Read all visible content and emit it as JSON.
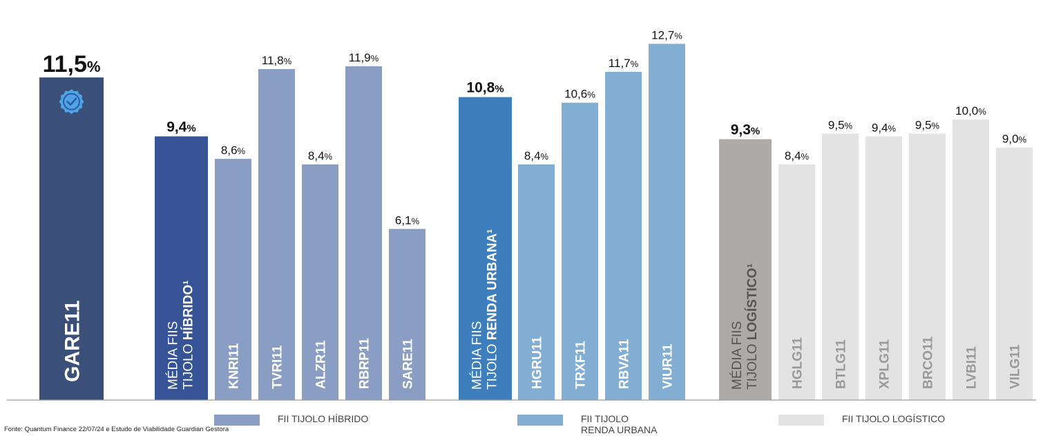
{
  "chart_data": {
    "type": "bar",
    "ylim": [
      0,
      13.5
    ],
    "bars": [
      {
        "label": "GARE11",
        "value": 11.5,
        "value_main": "11,5",
        "unit": "%",
        "group": "highlight",
        "color": "#3a5078",
        "bold": true,
        "label_size": "large"
      },
      {
        "label": "MÉDIA FIIS",
        "label2_light": "TIJOLO ",
        "label2_bold": "HÍBRIDO¹",
        "value": 9.4,
        "value_main": "9,4",
        "unit": "%",
        "group": "average",
        "color": "#355395",
        "bold": true
      },
      {
        "label": "KNRI11",
        "value": 8.6,
        "value_main": "8,6",
        "unit": "%",
        "group": "hibrido",
        "color": "#8a9ec4"
      },
      {
        "label": "TVRI11",
        "value": 11.8,
        "value_main": "11,8",
        "unit": "%",
        "group": "hibrido",
        "color": "#8a9ec4"
      },
      {
        "label": "ALZR11",
        "value": 8.4,
        "value_main": "8,4",
        "unit": "%",
        "group": "hibrido",
        "color": "#8a9ec4"
      },
      {
        "label": "RBRP11",
        "value": 11.9,
        "value_main": "11,9",
        "unit": "%",
        "group": "hibrido",
        "color": "#8a9ec4"
      },
      {
        "label": "SARE11",
        "value": 6.1,
        "value_main": "6,1",
        "unit": "%",
        "group": "hibrido",
        "color": "#8a9ec4"
      },
      {
        "label": "MÉDIA FIIS",
        "label2_light": "TIJOLO ",
        "label2_bold": "RENDA URBANA¹",
        "value": 10.8,
        "value_main": "10,8",
        "unit": "%",
        "group": "average",
        "color": "#3f7ebd",
        "bold": true
      },
      {
        "label": "HGRU11",
        "value": 8.4,
        "value_main": "8,4",
        "unit": "%",
        "group": "renda",
        "color": "#83aed3"
      },
      {
        "label": "TRXF11",
        "value": 10.6,
        "value_main": "10,6",
        "unit": "%",
        "group": "renda",
        "color": "#83aed3"
      },
      {
        "label": "RBVA11",
        "value": 11.7,
        "value_main": "11,7",
        "unit": "%",
        "group": "renda",
        "color": "#83aed3"
      },
      {
        "label": "VIUR11",
        "value": 12.7,
        "value_main": "12,7",
        "unit": "%",
        "group": "renda",
        "color": "#83aed3"
      },
      {
        "label": "MÉDIA FIIS",
        "label2_light": "TIJOLO ",
        "label2_bold": "LOGÍSTICO¹",
        "value": 9.3,
        "value_main": "9,3",
        "unit": "%",
        "group": "average",
        "color": "#adaaa8",
        "bold": true
      },
      {
        "label": "HGLG11",
        "value": 8.4,
        "value_main": "8,4",
        "unit": "%",
        "group": "logistico",
        "color": "#e3e3e3"
      },
      {
        "label": "BTLG11",
        "value": 9.5,
        "value_main": "9,5",
        "unit": "%",
        "group": "logistico",
        "color": "#e3e3e3"
      },
      {
        "label": "XPLG11",
        "value": 9.4,
        "value_main": "9,4",
        "unit": "%",
        "group": "logistico",
        "color": "#e3e3e3"
      },
      {
        "label": "BRCO11",
        "value": 9.5,
        "value_main": "9,5",
        "unit": "%",
        "group": "logistico",
        "color": "#e3e3e3"
      },
      {
        "label": "LVBI11",
        "value": 10.0,
        "value_main": "10,0",
        "unit": "%",
        "group": "logistico",
        "color": "#e3e3e3"
      },
      {
        "label": "VILG11",
        "value": 9.0,
        "value_main": "9,0",
        "unit": "%",
        "group": "logistico",
        "color": "#e3e3e3"
      }
    ],
    "legend": [
      {
        "label": "FII TIJOLO HÍBRIDO",
        "color": "#8a9ec4"
      },
      {
        "label": "FII TIJOLO",
        "label2": "RENDA URBANA",
        "color": "#83aed3"
      },
      {
        "label": "FII TIJOLO LOGÍSTICO",
        "color": "#e3e3e3"
      }
    ],
    "badge_icon": "verified-check-badge-icon",
    "legend_placement": "bottom"
  },
  "source_note": "Fonte:  Quantum Finance 22/07/24 e Estudo de Viabilidade Guardian Gestora"
}
